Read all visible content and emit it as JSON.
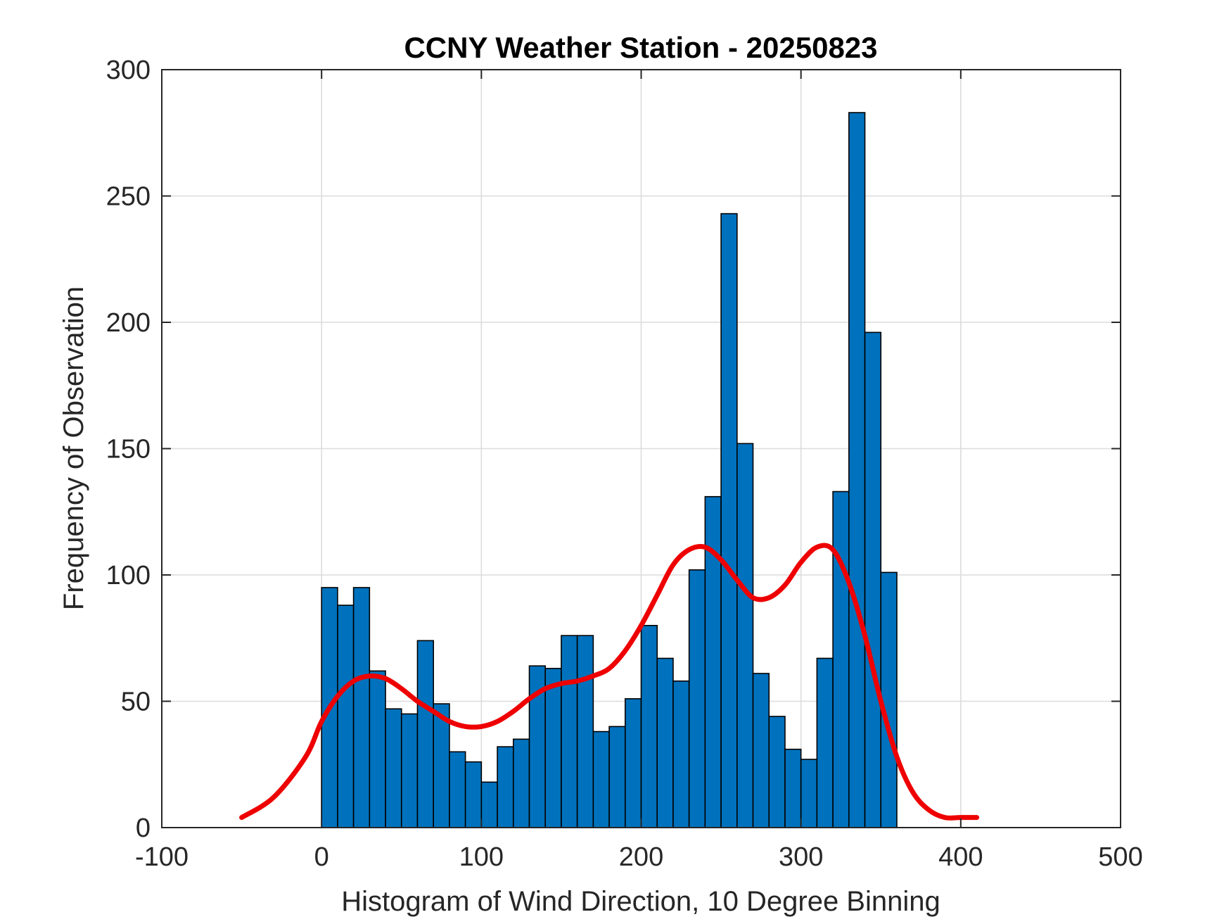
{
  "chart_data": {
    "type": "bar",
    "title": "CCNY Weather Station - 20250823",
    "xlabel": "Histogram of Wind Direction, 10 Degree Binning",
    "ylabel": "Frequency of Observation",
    "xlim": [
      -100,
      500
    ],
    "ylim": [
      0,
      300
    ],
    "xticks": [
      -100,
      0,
      100,
      200,
      300,
      400,
      500
    ],
    "xtick_labels": [
      "-100",
      "0",
      "100",
      "200",
      "300",
      "400",
      "500"
    ],
    "yticks": [
      0,
      50,
      100,
      150,
      200,
      250,
      300
    ],
    "ytick_labels": [
      "0",
      "50",
      "100",
      "150",
      "200",
      "250",
      "300"
    ],
    "grid": true,
    "bar_color": "#0072bd",
    "line_color": "#ee0000",
    "bin_width": 10,
    "bin_edges_start": [
      0,
      10,
      20,
      30,
      40,
      50,
      60,
      70,
      80,
      90,
      100,
      110,
      120,
      130,
      140,
      150,
      160,
      170,
      180,
      190,
      200,
      210,
      220,
      230,
      240,
      250,
      260,
      270,
      280,
      290,
      300,
      310,
      320,
      330,
      340,
      350
    ],
    "values": [
      95,
      88,
      95,
      62,
      47,
      45,
      74,
      49,
      30,
      26,
      18,
      32,
      35,
      64,
      63,
      76,
      76,
      38,
      40,
      51,
      80,
      67,
      58,
      102,
      131,
      243,
      152,
      61,
      44,
      31,
      27,
      67,
      133,
      283,
      196,
      101
    ],
    "density_curve": {
      "x": [
        -50,
        -30,
        -10,
        0,
        10,
        20,
        30,
        40,
        50,
        60,
        70,
        80,
        90,
        100,
        110,
        120,
        130,
        140,
        150,
        160,
        170,
        180,
        190,
        200,
        210,
        220,
        230,
        240,
        250,
        260,
        270,
        280,
        290,
        300,
        310,
        320,
        330,
        340,
        350,
        360,
        370,
        380,
        390,
        400,
        410
      ],
      "y": [
        4,
        12,
        28,
        42,
        52,
        58,
        60,
        59,
        55,
        50,
        46,
        42,
        40,
        40,
        42,
        46,
        51,
        55,
        57,
        58,
        60,
        63,
        70,
        80,
        92,
        104,
        110,
        111,
        106,
        98,
        91,
        91,
        96,
        105,
        111,
        110,
        97,
        76,
        50,
        28,
        14,
        7,
        4,
        4,
        4
      ]
    }
  }
}
